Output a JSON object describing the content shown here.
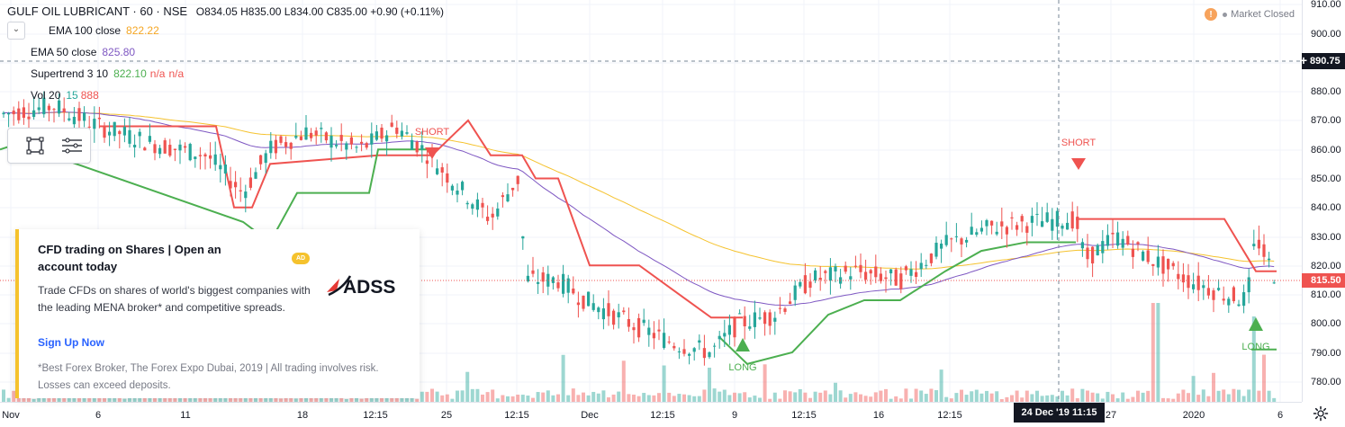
{
  "header": {
    "symbol": "GULF OIL LUBRICANT · 60 · NSE",
    "ohlc": "O834.05 H835.00 L834.00 C835.00 +0.90 (+0.11%)"
  },
  "indicators": [
    {
      "name": "EMA 100 close",
      "value": "822.22",
      "value2": "",
      "value3": "",
      "color": "#f5c22d"
    },
    {
      "name": "EMA 50 close",
      "value": "825.80",
      "value2": "",
      "value3": "",
      "color": "#7e57c2"
    },
    {
      "name": "Supertrend 3 10",
      "value": "822.10",
      "value2": "n/a",
      "value3": "n/a",
      "color": "#26a69a"
    },
    {
      "name": "Vol 20",
      "value": "15",
      "value2": "888",
      "value3": "",
      "color": "#26a69a"
    }
  ],
  "market_status": {
    "icon": "warning-icon",
    "label": "Market Closed"
  },
  "price_axis": {
    "ticks": [
      "910.00",
      "900.00",
      "890.00",
      "880.00",
      "870.00",
      "860.00",
      "850.00",
      "840.00",
      "830.00",
      "820.00",
      "810.00",
      "800.00",
      "790.00",
      "780.00"
    ],
    "crosshair_value": "890.75",
    "last_price": "815.50"
  },
  "time_axis": {
    "ticks": [
      "Nov",
      "6",
      "11",
      "18",
      "12:15",
      "25",
      "12:15",
      "Dec",
      "12:15",
      "9",
      "12:15",
      "16",
      "12:15",
      "27",
      "2020",
      "6"
    ],
    "crosshair_label": "24 Dec '19  11:15"
  },
  "signals": [
    {
      "label": "SHORT",
      "type": "short"
    },
    {
      "label": "SHORT",
      "type": "short"
    },
    {
      "label": "LONG",
      "type": "long"
    },
    {
      "label": "LONG",
      "type": "long"
    }
  ],
  "ad": {
    "title": "CFD trading on Shares | Open an account today",
    "badge": "AD",
    "brand": "ADSS",
    "body": "Trade CFDs on shares of world's biggest companies with the leading MENA broker* and competitive spreads.",
    "cta": "Sign Up Now",
    "disclaimer": "*Best Forex Broker, The Forex Expo Dubai, 2019 | All trading involves risk. Losses can exceed deposits."
  },
  "colors": {
    "up": "#26a69a",
    "down": "#ef5350",
    "ema100": "#f5c22d",
    "ema50": "#7e57c2",
    "st_up": "#4caf50",
    "st_down": "#ef5350"
  }
}
